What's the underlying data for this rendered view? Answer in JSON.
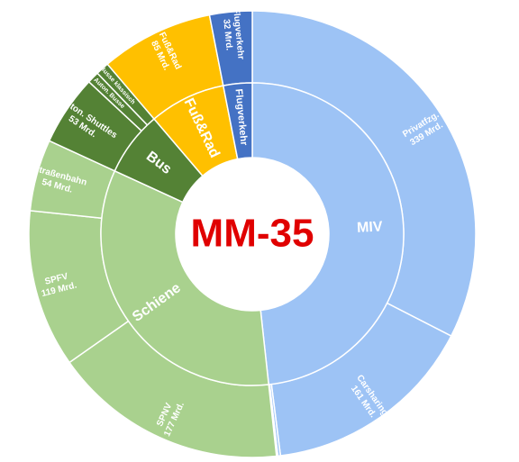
{
  "chart_data": {
    "type": "sunburst",
    "title": "MM-35",
    "groups": [
      {
        "name": "MIV",
        "color": "#9dc3f5",
        "categories": [
          "Privatfzg.",
          "Carsharing",
          null,
          null
        ],
        "values": [
          339,
          161,
          2,
          1
        ],
        "value_labels": [
          "339 Mrd.",
          "161 Mrd.",
          null,
          null
        ]
      },
      {
        "name": "Schiene",
        "color": "#a9d18e",
        "categories": [
          "SPNV",
          "SPFV",
          "Straßenbahn"
        ],
        "values": [
          177,
          119,
          54
        ],
        "value_labels": [
          "177 Mrd.",
          "119 Mrd.",
          "54 Mrd."
        ]
      },
      {
        "name": "Bus",
        "color": "#548235",
        "categories": [
          "Auton. Shuttles",
          "Auton. Busse",
          "Busse klassisch"
        ],
        "values": [
          53,
          9,
          10
        ],
        "value_labels": [
          "53 Mrd.",
          null,
          null
        ]
      },
      {
        "name": "Fuß&Rad",
        "color": "#ffc000",
        "categories": [
          "Fuß&Rad"
        ],
        "values": [
          85
        ],
        "value_labels": [
          "85 Mrd."
        ]
      },
      {
        "name": "Flugverkehr",
        "color": "#4472c4",
        "categories": [
          "Flugverkehr"
        ],
        "values": [
          32
        ],
        "value_labels": [
          "32 Mrd."
        ]
      }
    ]
  }
}
